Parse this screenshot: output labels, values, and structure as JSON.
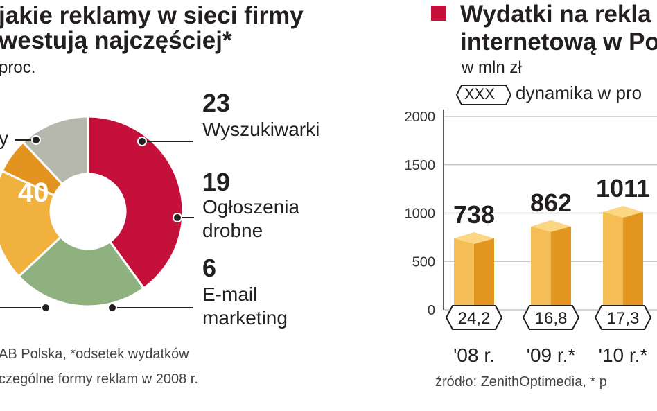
{
  "left": {
    "title_line1": "jakie reklamy w sieci firmy",
    "title_line2": "westują najczęściej*",
    "unit": "proc.",
    "source_line1": "AB Polska, *odsetek wydatków",
    "source_line2": "czególne formy reklam w 2008 r.",
    "partial_label": "y",
    "center_value": "40",
    "labels": [
      {
        "value": "23",
        "name": "Wyszukiwarki"
      },
      {
        "value": "19",
        "name": "Ogłoszenia",
        "name2": "drobne"
      },
      {
        "value": "6",
        "name": "E-mail",
        "name2": "marketing"
      }
    ]
  },
  "right": {
    "title_line1": "Wydatki na rekla",
    "title_line2": "internetową w Po",
    "unit": "w mln zł",
    "legend_box": "XXX",
    "legend_text": "dynamika w pro",
    "source": "źródło: ZenithOptimedia, * p"
  },
  "chart_data": [
    {
      "type": "pie",
      "title": "jakie reklamy w sieci firmy westują najczęściej*",
      "unit": "proc.",
      "slices": [
        {
          "label": "",
          "value": 40,
          "color": "#c4103a"
        },
        {
          "label": "Wyszukiwarki",
          "value": 23,
          "color": "#8fb07f"
        },
        {
          "label": "Ogłoszenia drobne",
          "value": 19,
          "color": "#f0b13f"
        },
        {
          "label": "E-mail marketing",
          "value": 6,
          "color": "#e29320"
        },
        {
          "label": "",
          "value": 12,
          "color": "#b6b8ad"
        }
      ]
    },
    {
      "type": "bar",
      "title": "Wydatki na rekla internetową w Po",
      "ylabel": "w mln zł",
      "categories": [
        "'08 r.",
        "'09 r.*",
        "'10 r.*"
      ],
      "values": [
        738,
        862,
        1011
      ],
      "value_labels": [
        "738",
        "862",
        "1011"
      ],
      "dynamics": [
        "24,2",
        "16,8",
        "17,3"
      ],
      "ylim": [
        0,
        2000
      ],
      "yticks": [
        0,
        500,
        1000,
        1500,
        2000
      ],
      "grid": true,
      "color": "#f0b13f"
    }
  ]
}
